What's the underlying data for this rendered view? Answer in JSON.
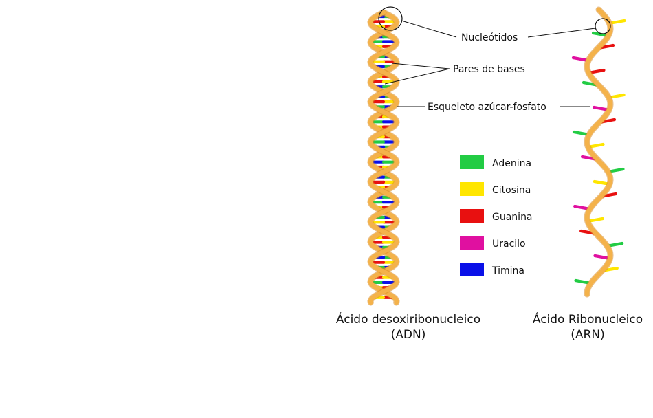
{
  "labels": {
    "nucleotides": "Nucleótidos",
    "base_pairs": "Pares de bases",
    "backbone": "Esqueleto azúcar-fosfato"
  },
  "legend": [
    {
      "name": "Adenina",
      "color": "#22cc44"
    },
    {
      "name": "Citosina",
      "color": "#ffe600"
    },
    {
      "name": "Guanina",
      "color": "#e81010"
    },
    {
      "name": "Uracilo",
      "color": "#e010a0"
    },
    {
      "name": "Timina",
      "color": "#0a10e8"
    }
  ],
  "dna": {
    "title_line1": "Ácido desoxiribonucleico",
    "title_line2": "(ADN)",
    "ribbon_color": "#f4b24a",
    "ribbon_dark": "#d98a22"
  },
  "rna": {
    "title_line1": "Ácido Ribonucleico",
    "title_line2": "(ARN)"
  }
}
